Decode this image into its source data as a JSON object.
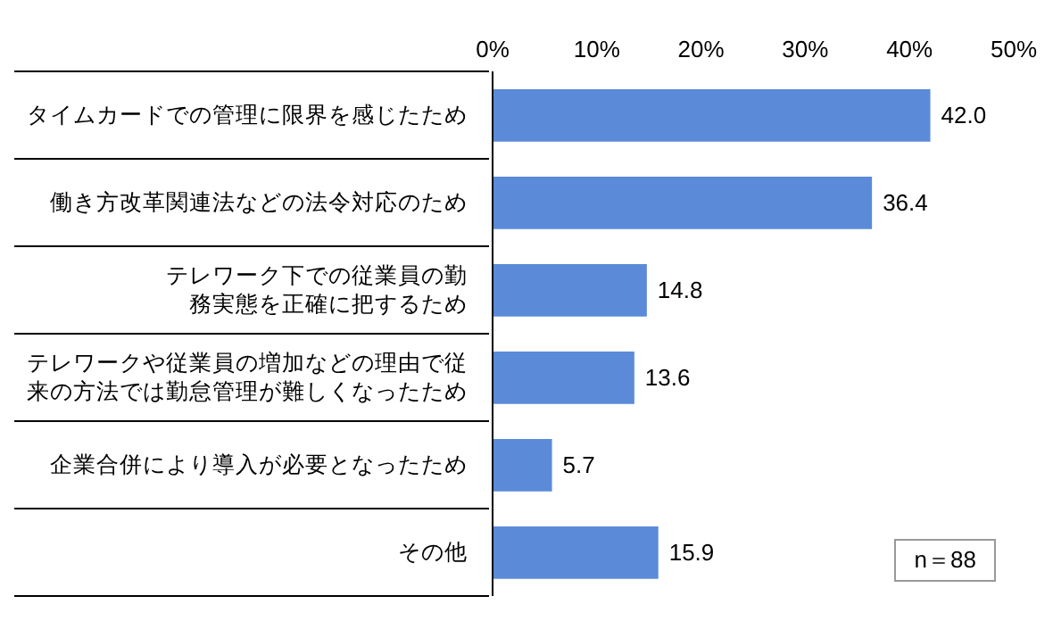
{
  "chart_data": {
    "type": "bar",
    "orientation": "horizontal",
    "categories": [
      "タイムカードでの管理に限界を感じたため",
      "働き方改革関連法などの法令対応のため",
      "テレワーク下での従業員の勤務実態を正確に把するため",
      "テレワークや従業員の増加などの理由で従来の方法では勤怠管理が難しくなったため",
      "企業合併により導入が必要となったため",
      "その他"
    ],
    "values": [
      42.0,
      36.4,
      14.8,
      13.6,
      5.7,
      15.9
    ],
    "value_labels": [
      "42.0",
      "36.4",
      "14.8",
      "13.6",
      "5.7",
      "15.9"
    ],
    "color": "#5b8bd8",
    "xlim": [
      0,
      50
    ],
    "xticks": [
      {
        "value": 0,
        "label": "0%"
      },
      {
        "value": 10,
        "label": "10%"
      },
      {
        "value": 20,
        "label": "20%"
      },
      {
        "value": 30,
        "label": "30%"
      },
      {
        "value": 40,
        "label": "40%"
      },
      {
        "value": 50,
        "label": "50%"
      }
    ],
    "grid": false,
    "annotations": [
      "n＝88"
    ]
  }
}
